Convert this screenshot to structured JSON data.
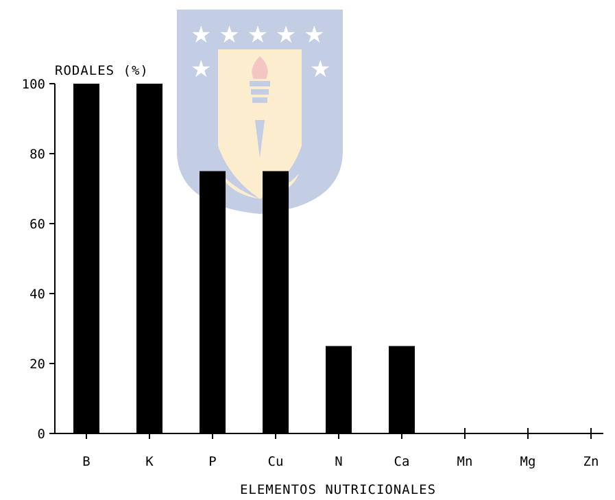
{
  "chart_data": {
    "type": "bar",
    "ylabel": "RODALES (%)",
    "xlabel": "ELEMENTOS NUTRICIONALES",
    "categories": [
      "B",
      "K",
      "P",
      "Cu",
      "N",
      "Ca",
      "Mn",
      "Mg",
      "Zn"
    ],
    "values": [
      100,
      100,
      75,
      75,
      25,
      25,
      0,
      0,
      0
    ],
    "ylim": [
      0,
      100
    ],
    "yticks": [
      "0",
      "20",
      "40",
      "60",
      "80",
      "100"
    ],
    "grid": false,
    "legend": "none",
    "bar_color": "#000000"
  },
  "watermark": {
    "description_icon": "university-crest-icon",
    "colors": {
      "gold": "#f2c14e",
      "blue": "#2a4fa0",
      "red": "#d9372b"
    }
  }
}
